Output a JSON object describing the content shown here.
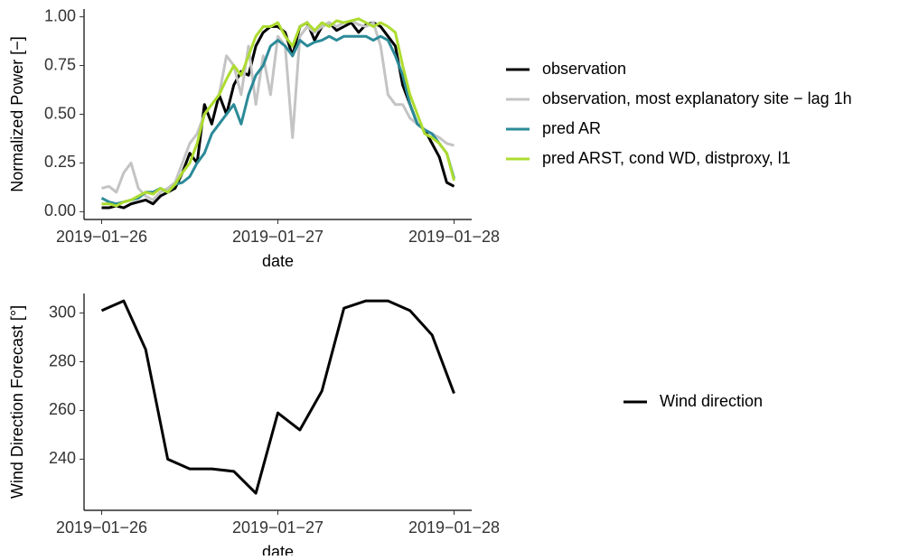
{
  "chart_data": [
    {
      "type": "line",
      "xlabel": "date",
      "ylabel": "Normalized Power [−]",
      "legend": "right",
      "x": [
        0,
        1,
        2,
        3,
        4,
        5,
        6,
        7,
        8,
        9,
        10,
        11,
        12,
        13,
        14,
        15,
        16,
        17,
        18,
        19,
        20,
        21,
        22,
        23,
        24,
        25,
        26,
        27,
        28,
        29,
        30,
        31,
        32,
        33,
        34,
        35,
        36,
        37,
        38,
        39,
        40,
        41,
        42,
        43,
        44,
        45,
        46,
        47,
        48
      ],
      "xlim": [
        -2.4,
        50.4
      ],
      "xticks": [
        {
          "value": 0,
          "label": "2019−01−26"
        },
        {
          "value": 24,
          "label": "2019−01−27"
        },
        {
          "value": 48,
          "label": "2019−01−28"
        }
      ],
      "ylim": [
        -0.04,
        1.04
      ],
      "yticks": [
        {
          "value": 0,
          "label": "0.00"
        },
        {
          "value": 0.25,
          "label": "0.25"
        },
        {
          "value": 0.5,
          "label": "0.50"
        },
        {
          "value": 0.75,
          "label": "0.75"
        },
        {
          "value": 1,
          "label": "1.00"
        }
      ],
      "series": [
        {
          "name": "observation",
          "color": "#000000",
          "values": [
            0.02,
            0.02,
            0.03,
            0.02,
            0.04,
            0.05,
            0.06,
            0.04,
            0.08,
            0.1,
            0.12,
            0.2,
            0.3,
            0.25,
            0.55,
            0.45,
            0.6,
            0.5,
            0.65,
            0.72,
            0.7,
            0.85,
            0.92,
            0.95,
            0.95,
            0.92,
            0.8,
            0.95,
            0.97,
            0.88,
            0.95,
            0.97,
            0.93,
            0.95,
            0.97,
            0.92,
            0.96,
            0.97,
            0.95,
            0.9,
            0.85,
            0.65,
            0.55,
            0.45,
            0.42,
            0.35,
            0.28,
            0.15,
            0.13
          ]
        },
        {
          "name": "observation, most explanatory site − lag 1h",
          "color": "#c4c4c4",
          "values": [
            0.12,
            0.13,
            0.1,
            0.2,
            0.25,
            0.12,
            0.08,
            0.06,
            0.1,
            0.12,
            0.15,
            0.25,
            0.35,
            0.4,
            0.5,
            0.55,
            0.6,
            0.8,
            0.75,
            0.6,
            0.85,
            0.55,
            0.8,
            0.6,
            0.9,
            0.85,
            0.38,
            0.9,
            0.95,
            0.92,
            0.95,
            0.97,
            0.95,
            0.97,
            0.98,
            0.96,
            0.95,
            0.97,
            0.85,
            0.6,
            0.55,
            0.55,
            0.48,
            0.45,
            0.42,
            0.4,
            0.38,
            0.35,
            0.34
          ]
        },
        {
          "name": "pred AR",
          "color": "#2b8a98",
          "values": [
            0.07,
            0.05,
            0.04,
            0.05,
            0.06,
            0.07,
            0.1,
            0.1,
            0.12,
            0.1,
            0.14,
            0.15,
            0.18,
            0.25,
            0.3,
            0.4,
            0.45,
            0.5,
            0.55,
            0.45,
            0.6,
            0.7,
            0.75,
            0.85,
            0.88,
            0.85,
            0.8,
            0.88,
            0.85,
            0.87,
            0.88,
            0.9,
            0.88,
            0.9,
            0.9,
            0.9,
            0.9,
            0.88,
            0.9,
            0.88,
            0.8,
            0.7,
            0.55,
            0.45,
            0.42,
            0.4,
            0.35,
            0.3,
            0.17
          ]
        },
        {
          "name": "pred ARST, cond WD, distproxy, l1",
          "color": "#addc30",
          "values": [
            0.04,
            0.04,
            0.03,
            0.05,
            0.06,
            0.08,
            0.1,
            0.09,
            0.12,
            0.1,
            0.14,
            0.2,
            0.25,
            0.35,
            0.5,
            0.55,
            0.6,
            0.68,
            0.75,
            0.7,
            0.8,
            0.9,
            0.95,
            0.95,
            0.97,
            0.9,
            0.85,
            0.95,
            0.97,
            0.93,
            0.97,
            0.95,
            0.98,
            0.97,
            0.98,
            0.99,
            0.97,
            0.95,
            0.97,
            0.95,
            0.92,
            0.75,
            0.6,
            0.5,
            0.4,
            0.38,
            0.35,
            0.3,
            0.16
          ]
        }
      ]
    },
    {
      "type": "line",
      "xlabel": "date",
      "ylabel": "Wind Direction Forecast [°]",
      "legend": "right",
      "x": [
        0,
        3,
        6,
        9,
        12,
        15,
        18,
        21,
        24,
        27,
        30,
        33,
        36,
        39,
        42,
        45,
        48
      ],
      "xlim": [
        -2.4,
        50.4
      ],
      "xticks": [
        {
          "value": 0,
          "label": "2019−01−26"
        },
        {
          "value": 24,
          "label": "2019−01−27"
        },
        {
          "value": 48,
          "label": "2019−01−28"
        }
      ],
      "ylim": [
        219,
        308
      ],
      "yticks": [
        240,
        260,
        280,
        300
      ],
      "series": [
        {
          "name": "Wind direction",
          "color": "#000000",
          "values": [
            301,
            305,
            285,
            240,
            236,
            236,
            235,
            226,
            259,
            252,
            268,
            302,
            305,
            305,
            301,
            291,
            267
          ]
        }
      ]
    }
  ]
}
